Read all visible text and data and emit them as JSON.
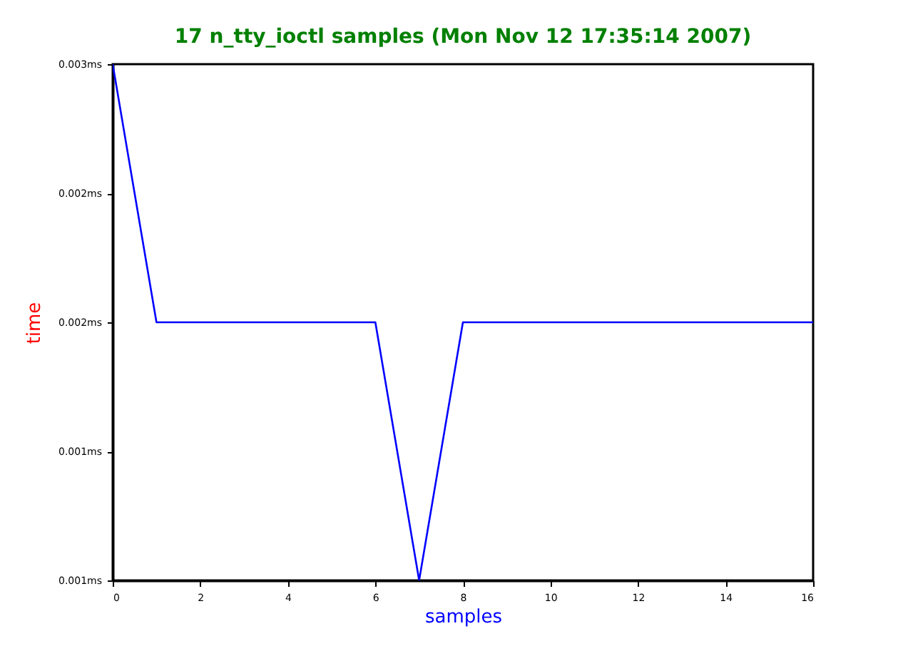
{
  "chart_data": {
    "type": "line",
    "title": "17 n_tty_ioctl samples (Mon Nov 12 17:35:14 2007)",
    "xlabel": "samples",
    "ylabel": "time",
    "x": [
      0,
      1,
      2,
      3,
      4,
      5,
      6,
      7,
      8,
      9,
      10,
      11,
      12,
      13,
      14,
      15,
      16
    ],
    "series": [
      {
        "color": "#0000ff",
        "values": [
          0.003,
          0.002,
          0.002,
          0.002,
          0.002,
          0.002,
          0.002,
          0.001,
          0.002,
          0.002,
          0.002,
          0.002,
          0.002,
          0.002,
          0.002,
          0.002,
          0.002
        ]
      }
    ],
    "xlim": [
      0,
      16
    ],
    "xticks": [
      0,
      2,
      4,
      6,
      8,
      10,
      12,
      14,
      16
    ],
    "ylim": [
      0.001,
      0.003
    ],
    "yticks": [
      {
        "value": 0.001,
        "label": "0.001ms"
      },
      {
        "value": 0.0015,
        "label": "0.001ms"
      },
      {
        "value": 0.002,
        "label": "0.002ms"
      },
      {
        "value": 0.0025,
        "label": "0.002ms"
      },
      {
        "value": 0.003,
        "label": "0.003ms"
      }
    ],
    "grid": false,
    "marker": "none",
    "line_style": "solid"
  }
}
